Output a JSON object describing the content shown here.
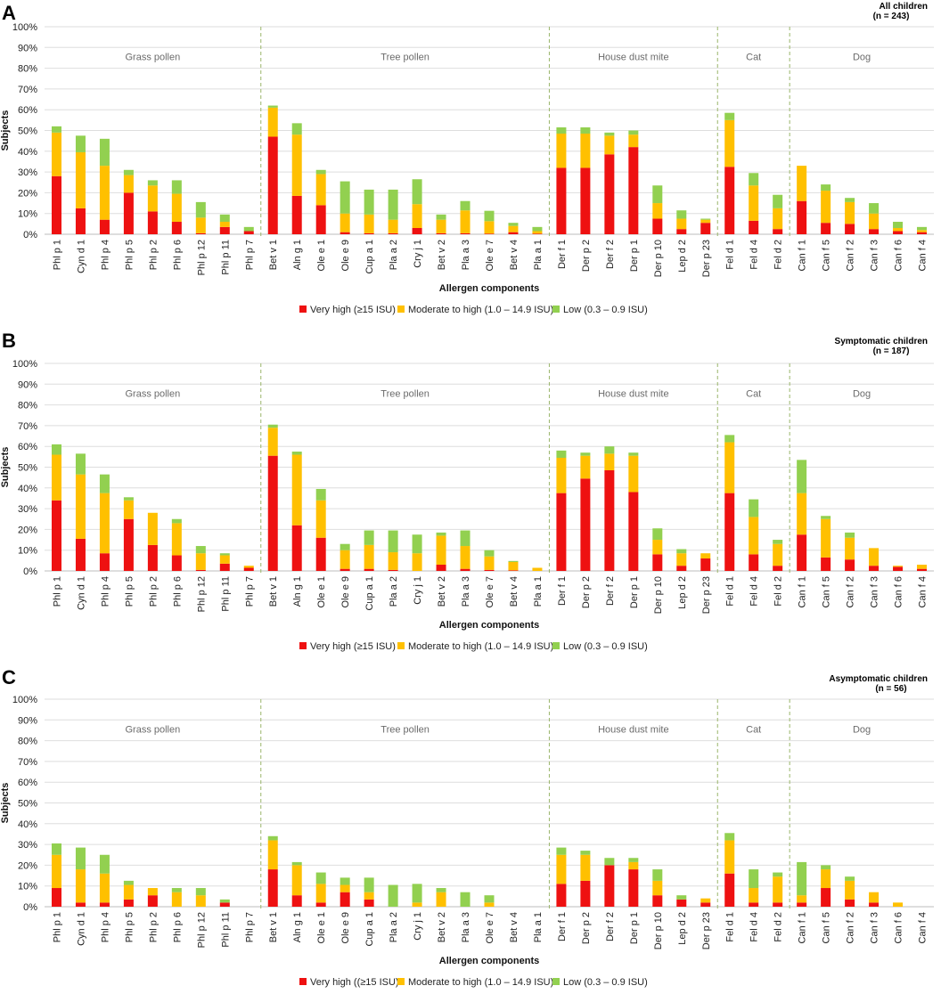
{
  "colors": {
    "very_high": "#ee1111",
    "moderate": "#ffc000",
    "low": "#92d050",
    "divider": "#9ab56a"
  },
  "categories": [
    "Phl p 1",
    "Cyn d 1",
    "Phl p 4",
    "Phl p 5",
    "Phl p 2",
    "Phl p 6",
    "Phl p 12",
    "Phl p 11",
    "Phl p 7",
    "Bet v 1",
    "Aln g 1",
    "Ole e 1",
    "Ole e 9",
    "Cup a 1",
    "Pla a 2",
    "Cry j 1",
    "Bet v 2",
    "Pla a 3",
    "Ole e 7",
    "Bet v 4",
    "Pla a 1",
    "Der f 1",
    "Der p 2",
    "Der f 2",
    "Der p 1",
    "Der p 10",
    "Lep d 2",
    "Der p 23",
    "Fel d 1",
    "Fel d 4",
    "Fel d 2",
    "Can f 1",
    "Can f 5",
    "Can f 2",
    "Can f 3",
    "Can f 6",
    "Can f 4"
  ],
  "groups": [
    {
      "label": "Grass pollen",
      "start": 0,
      "end": 8
    },
    {
      "label": "Tree pollen",
      "start": 9,
      "end": 20
    },
    {
      "label": "House dust mite",
      "start": 21,
      "end": 27
    },
    {
      "label": "Cat",
      "start": 28,
      "end": 30
    },
    {
      "label": "Dog",
      "start": 31,
      "end": 36
    }
  ],
  "chart_data": [
    {
      "type": "bar",
      "stacked": true,
      "panel": "A",
      "title_line1": "All children",
      "title_line2": "(n = 243)",
      "xlabel": "Allergen components",
      "ylabel": "Subjects",
      "ylim": [
        0,
        100
      ],
      "yticks": [
        "0%",
        "10%",
        "20%",
        "30%",
        "40%",
        "50%",
        "60%",
        "70%",
        "80%",
        "90%",
        "100%"
      ],
      "legend": [
        "Very high (≥15 ISU)",
        "Moderate to high (1.0 – 14.9 ISU)",
        "Low (0.3 – 0.9 ISU)"
      ],
      "series": [
        {
          "name": "Very high",
          "values": [
            28,
            12.5,
            7,
            20,
            11,
            6,
            0.5,
            3.5,
            1.5,
            47,
            18.5,
            14,
            1,
            0.5,
            0.5,
            3,
            0.5,
            0.5,
            0.3,
            1,
            0.3,
            32,
            32,
            38.5,
            42,
            7.5,
            2.5,
            5.5,
            32.5,
            6.5,
            2.5,
            16,
            5.5,
            5,
            2.5,
            1.5,
            1
          ]
        },
        {
          "name": "Moderate to high",
          "values": [
            21,
            27,
            26,
            8.5,
            12.5,
            13.5,
            7.5,
            2.5,
            0,
            14,
            29.5,
            15,
            9,
            9,
            6.5,
            11.5,
            6.5,
            11,
            6,
            3,
            1.2,
            16.5,
            16.5,
            9,
            6,
            7.5,
            5,
            1.5,
            22.5,
            17,
            10,
            17,
            15.5,
            10.5,
            7.5,
            1.5,
            1
          ]
        },
        {
          "name": "Low",
          "values": [
            3,
            8,
            13,
            2.5,
            2.5,
            6.5,
            7.5,
            3.5,
            2,
            1,
            5.5,
            2,
            15.5,
            12,
            14.5,
            12,
            2.5,
            4.5,
            5,
            1.5,
            2,
            3,
            3,
            1.5,
            2,
            8.5,
            4,
            0.5,
            3.5,
            6,
            6.5,
            0,
            3,
            2,
            5,
            3,
            1.5
          ]
        }
      ]
    },
    {
      "type": "bar",
      "stacked": true,
      "panel": "B",
      "title_line1": "Symptomatic children",
      "title_line2": "(n = 187)",
      "xlabel": "Allergen components",
      "ylabel": "Subjects",
      "ylim": [
        0,
        100
      ],
      "yticks": [
        "0%",
        "10%",
        "20%",
        "30%",
        "40%",
        "50%",
        "60%",
        "70%",
        "80%",
        "90%",
        "100%"
      ],
      "legend": [
        "Very high (≥15 ISU)",
        "Moderate to high (1.0 – 14.9 ISU)",
        "Low (0.3 – 0.9 ISU)"
      ],
      "series": [
        {
          "name": "Very high",
          "values": [
            34,
            15.5,
            8.5,
            25,
            12.5,
            7.5,
            0.5,
            3.5,
            1.5,
            55.5,
            22,
            16,
            1,
            1,
            0.5,
            0,
            3,
            1,
            0.5,
            0.3,
            0,
            37.5,
            44.5,
            48.5,
            38,
            8,
            2.5,
            6,
            37.5,
            8,
            2.5,
            17.5,
            6.5,
            5.5,
            2.5,
            2,
            1
          ]
        },
        {
          "name": "Moderate to high",
          "values": [
            22,
            31,
            29,
            9,
            15.5,
            15.5,
            8,
            4,
            1,
            13.5,
            34,
            18,
            9,
            11.5,
            8.5,
            8.5,
            14,
            11,
            6.5,
            4,
            1.5,
            17,
            11,
            8,
            17.5,
            7,
            6,
            2.5,
            24.5,
            18,
            10.5,
            20,
            18.5,
            10.5,
            8.5,
            0.5,
            2
          ]
        },
        {
          "name": "Low",
          "values": [
            5,
            10,
            9,
            1.5,
            0,
            2,
            3.5,
            1,
            0,
            1.5,
            1.5,
            5.5,
            3,
            7,
            10.5,
            9,
            1.5,
            7.5,
            3,
            0.5,
            0,
            3.5,
            1.5,
            3.5,
            1.5,
            5.5,
            2,
            0,
            3.5,
            8.5,
            2,
            16,
            1.5,
            2.5,
            0,
            0,
            0
          ]
        }
      ]
    },
    {
      "type": "bar",
      "stacked": true,
      "panel": "C",
      "title_line1": "Asymptomatic children",
      "title_line2": "(n = 56)",
      "xlabel": "Allergen components",
      "ylabel": "Subjects",
      "ylim": [
        0,
        100
      ],
      "yticks": [
        "0%",
        "10%",
        "20%",
        "30%",
        "40%",
        "50%",
        "60%",
        "70%",
        "80%",
        "90%",
        "100%"
      ],
      "legend": [
        "Very high ((≥15 ISU)",
        "Moderate to high (1.0 – 14.9 ISU)",
        "Low (0.3 – 0.9 ISU)"
      ],
      "series": [
        {
          "name": "Very high",
          "values": [
            9,
            2,
            2,
            3.5,
            5.5,
            0,
            0,
            2,
            0,
            18,
            5.5,
            2,
            7,
            3.5,
            0,
            0,
            0,
            0,
            0,
            0,
            0,
            11,
            12.5,
            20,
            18,
            5.5,
            3.5,
            2,
            16,
            2,
            2,
            2,
            9,
            3.5,
            2,
            0,
            0
          ]
        },
        {
          "name": "Moderate to high",
          "values": [
            16,
            16,
            14,
            7,
            3.5,
            7,
            5.5,
            0,
            0,
            14,
            14.5,
            9,
            3.5,
            3.5,
            0,
            2,
            7,
            0,
            2,
            0,
            0,
            14,
            12.5,
            0,
            3.5,
            7,
            0,
            2,
            16,
            7,
            12.5,
            3.5,
            9,
            9,
            5,
            2,
            0
          ]
        },
        {
          "name": "Low",
          "values": [
            5.5,
            10.5,
            9,
            2,
            0,
            2,
            3.5,
            1.5,
            0,
            2,
            1.5,
            5.5,
            3.5,
            7,
            10.5,
            9,
            2,
            7,
            3.5,
            0,
            0,
            3.5,
            2,
            3.5,
            2,
            5.5,
            2,
            0,
            3.5,
            9,
            2,
            16,
            2,
            2,
            0,
            0,
            0
          ]
        }
      ]
    }
  ]
}
